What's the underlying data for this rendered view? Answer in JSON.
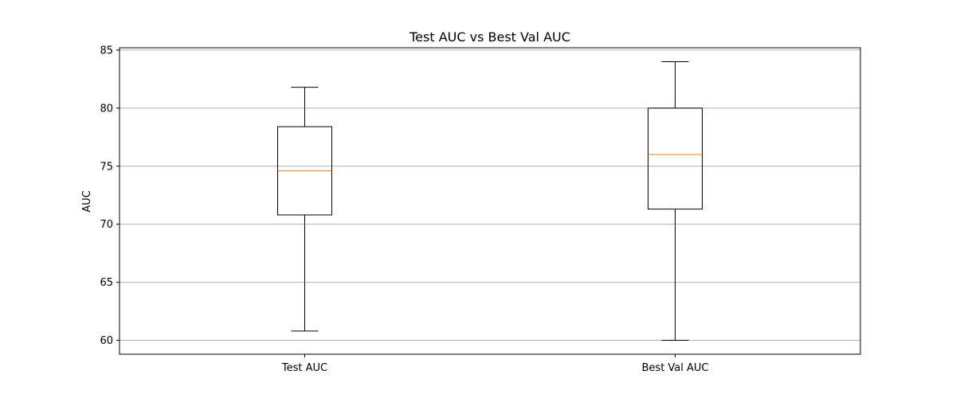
{
  "chart_data": {
    "type": "box",
    "title": "Test AUC vs Best Val AUC",
    "xlabel": "",
    "ylabel": "AUC",
    "ylim": [
      58.8,
      85.2
    ],
    "yticks": [
      60,
      65,
      70,
      75,
      80,
      85
    ],
    "ytick_labels": [
      "60",
      "65",
      "70",
      "75",
      "80",
      "85"
    ],
    "grid": "y-axis",
    "categories": [
      "Test AUC",
      "Best Val AUC"
    ],
    "boxes": [
      {
        "whisker_low": 60.8,
        "q1": 70.8,
        "median": 74.6,
        "q3": 78.4,
        "whisker_high": 81.8
      },
      {
        "whisker_low": 60.0,
        "q1": 71.3,
        "median": 76.0,
        "q3": 80.0,
        "whisker_high": 84.0
      }
    ],
    "colors": {
      "box": "#000000",
      "median": "#ff7f0e",
      "grid": "#b0b0b0",
      "background": "#ffffff"
    }
  }
}
